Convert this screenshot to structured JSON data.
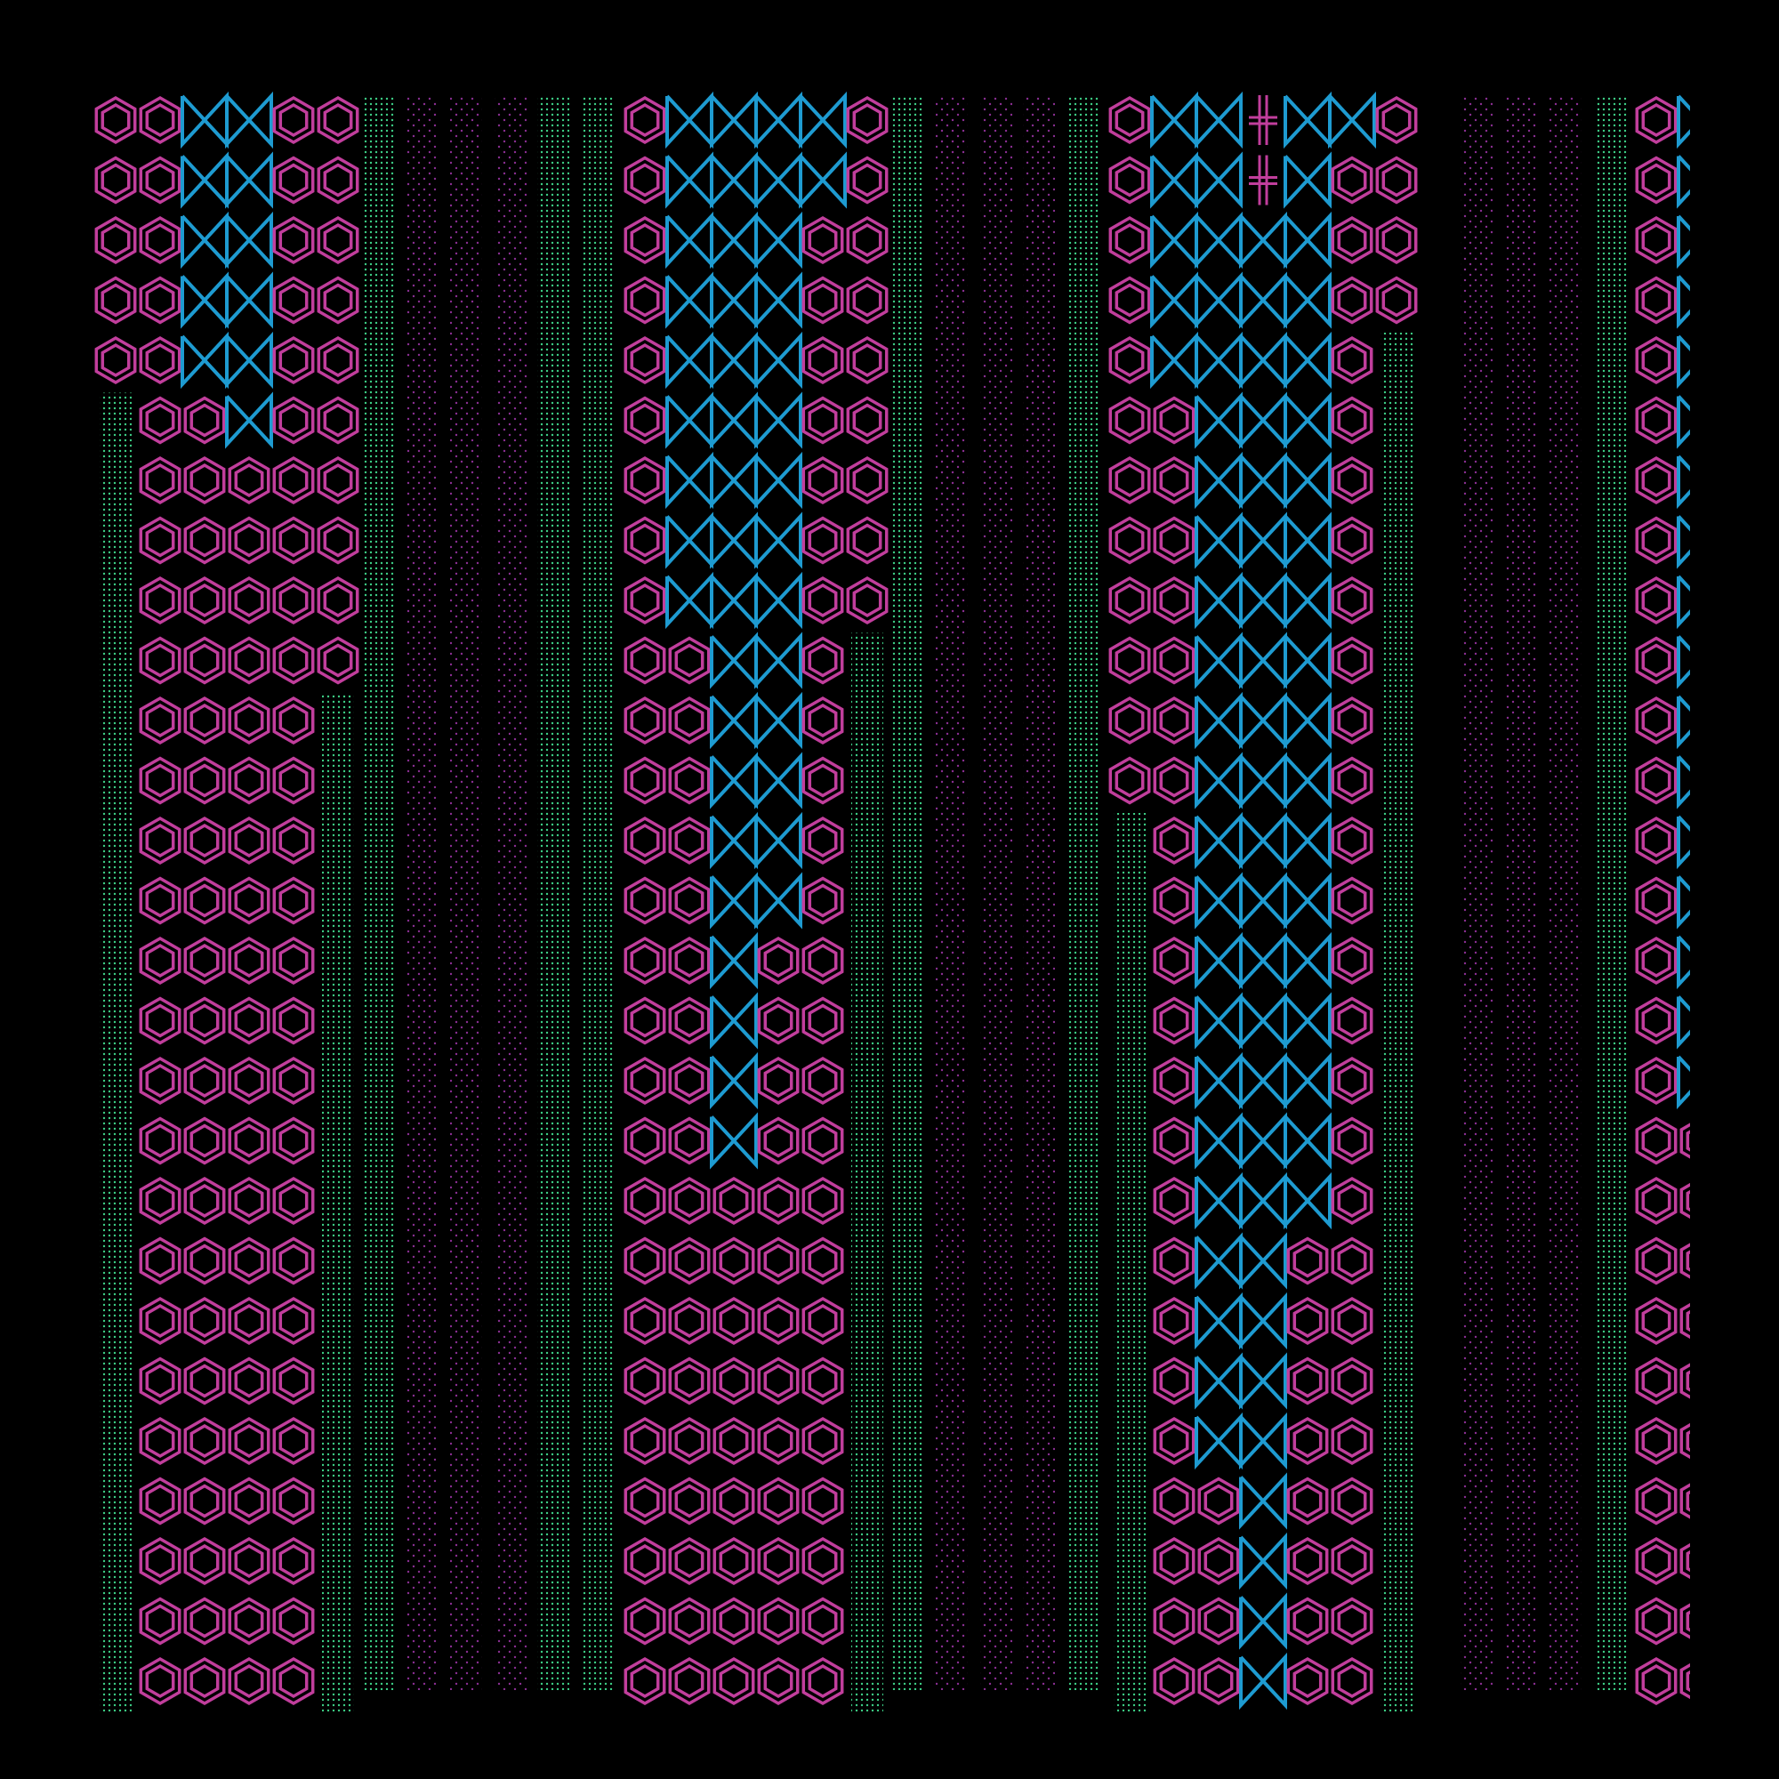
{
  "artwork": {
    "background": "#000000",
    "colors": {
      "magenta": "#c13e9c",
      "cyan": "#1e9bd1",
      "green": "#3dcf86",
      "purple": "#8a2e92"
    },
    "glyphs": {
      "hexagon": "hexagon-icon",
      "bowtie": "bowtie-icon",
      "cross": "double-cross-icon",
      "green_dots": "green-dot-fill",
      "purple_dots": "purple-dot-fill"
    },
    "columns": [
      {
        "id": "A",
        "rows": [
          [
            "H",
            "H",
            "B",
            "B",
            "H",
            "H"
          ],
          [
            "H",
            "H",
            "B",
            "B",
            "H",
            "H"
          ],
          [
            "H",
            "H",
            "B",
            "B",
            "H",
            "H"
          ],
          [
            "H",
            "H",
            "B",
            "B",
            "H",
            "H"
          ],
          [
            "H",
            "H",
            "B",
            "B",
            "H",
            "H"
          ],
          [
            "G",
            "H",
            "H",
            "B",
            "H",
            "H"
          ],
          [
            "G",
            "H",
            "H",
            "H",
            "H",
            "H"
          ],
          [
            "G",
            "H",
            "H",
            "H",
            "H",
            "H"
          ],
          [
            "G",
            "H",
            "H",
            "H",
            "H",
            "H"
          ],
          [
            "G",
            "H",
            "H",
            "H",
            "H",
            "H"
          ],
          [
            "G",
            "H",
            "H",
            "H",
            "H",
            "G"
          ],
          [
            "G",
            "H",
            "H",
            "H",
            "H",
            "G"
          ],
          [
            "G",
            "H",
            "H",
            "H",
            "H",
            "G"
          ],
          [
            "G",
            "H",
            "H",
            "H",
            "H",
            "G"
          ],
          [
            "G",
            "H",
            "H",
            "H",
            "H",
            "G"
          ],
          [
            "G",
            "H",
            "H",
            "H",
            "H",
            "G"
          ],
          [
            "G",
            "H",
            "H",
            "H",
            "H",
            "G"
          ],
          [
            "G",
            "H",
            "H",
            "H",
            "H",
            "G"
          ],
          [
            "G",
            "H",
            "H",
            "H",
            "H",
            "G"
          ],
          [
            "G",
            "H",
            "H",
            "H",
            "H",
            "G"
          ],
          [
            "G",
            "H",
            "H",
            "H",
            "H",
            "G"
          ],
          [
            "G",
            "H",
            "H",
            "H",
            "H",
            "G"
          ],
          [
            "G",
            "H",
            "H",
            "H",
            "H",
            "G"
          ],
          [
            "G",
            "H",
            "H",
            "H",
            "H",
            "G"
          ],
          [
            "G",
            "H",
            "H",
            "H",
            "H",
            "G"
          ],
          [
            "G",
            "H",
            "H",
            "H",
            "H",
            "G"
          ],
          [
            "G",
            "H",
            "H",
            "H",
            "H",
            "G"
          ]
        ]
      },
      {
        "id": "B",
        "rows": [
          [
            "H",
            "B",
            "B",
            "B",
            "B",
            "H"
          ],
          [
            "H",
            "B",
            "B",
            "B",
            "B",
            "H"
          ],
          [
            "H",
            "B",
            "B",
            "B",
            "H",
            "H"
          ],
          [
            "H",
            "B",
            "B",
            "B",
            "H",
            "H"
          ],
          [
            "H",
            "B",
            "B",
            "B",
            "H",
            "H"
          ],
          [
            "H",
            "B",
            "B",
            "B",
            "H",
            "H"
          ],
          [
            "H",
            "B",
            "B",
            "B",
            "H",
            "H"
          ],
          [
            "H",
            "B",
            "B",
            "B",
            "H",
            "H"
          ],
          [
            "H",
            "B",
            "B",
            "B",
            "H",
            "H"
          ],
          [
            "H",
            "H",
            "B",
            "B",
            "H",
            "G"
          ],
          [
            "H",
            "H",
            "B",
            "B",
            "H",
            "G"
          ],
          [
            "H",
            "H",
            "B",
            "B",
            "H",
            "G"
          ],
          [
            "H",
            "H",
            "B",
            "B",
            "H",
            "G"
          ],
          [
            "H",
            "H",
            "B",
            "B",
            "H",
            "G"
          ],
          [
            "H",
            "H",
            "B",
            "H",
            "H",
            "G"
          ],
          [
            "H",
            "H",
            "B",
            "H",
            "H",
            "G"
          ],
          [
            "H",
            "H",
            "B",
            "H",
            "H",
            "G"
          ],
          [
            "H",
            "H",
            "B",
            "H",
            "H",
            "G"
          ],
          [
            "H",
            "H",
            "H",
            "H",
            "H",
            "G"
          ],
          [
            "H",
            "H",
            "H",
            "H",
            "H",
            "G"
          ],
          [
            "H",
            "H",
            "H",
            "H",
            "H",
            "G"
          ],
          [
            "H",
            "H",
            "H",
            "H",
            "H",
            "G"
          ],
          [
            "H",
            "H",
            "H",
            "H",
            "H",
            "G"
          ],
          [
            "H",
            "H",
            "H",
            "H",
            "H",
            "G"
          ],
          [
            "H",
            "H",
            "H",
            "H",
            "H",
            "G"
          ],
          [
            "H",
            "H",
            "H",
            "H",
            "H",
            "G"
          ],
          [
            "H",
            "H",
            "H",
            "H",
            "H",
            "G"
          ]
        ]
      },
      {
        "id": "C",
        "rows": [
          [
            "H",
            "B",
            "B",
            "X",
            "B",
            "B",
            "H"
          ],
          [
            "H",
            "B",
            "B",
            "X",
            "B",
            "H",
            "H"
          ],
          [
            "H",
            "B",
            "B",
            "B",
            "B",
            "H",
            "H"
          ],
          [
            "H",
            "B",
            "B",
            "B",
            "B",
            "H",
            "H"
          ],
          [
            "H",
            "B",
            "B",
            "B",
            "B",
            "H",
            "G"
          ],
          [
            "H",
            "H",
            "B",
            "B",
            "B",
            "H",
            "G"
          ],
          [
            "H",
            "H",
            "B",
            "B",
            "B",
            "H",
            "G"
          ],
          [
            "H",
            "H",
            "B",
            "B",
            "B",
            "H",
            "G"
          ],
          [
            "H",
            "H",
            "B",
            "B",
            "B",
            "H",
            "G"
          ],
          [
            "H",
            "H",
            "B",
            "B",
            "B",
            "H",
            "G"
          ],
          [
            "H",
            "H",
            "B",
            "B",
            "B",
            "H",
            "G"
          ],
          [
            "H",
            "H",
            "B",
            "B",
            "B",
            "H",
            "G"
          ],
          [
            "G",
            "H",
            "B",
            "B",
            "B",
            "H",
            "G"
          ],
          [
            "G",
            "H",
            "B",
            "B",
            "B",
            "H",
            "G"
          ],
          [
            "G",
            "H",
            "B",
            "B",
            "B",
            "H",
            "G"
          ],
          [
            "G",
            "H",
            "B",
            "B",
            "B",
            "H",
            "G"
          ],
          [
            "G",
            "H",
            "B",
            "B",
            "B",
            "H",
            "G"
          ],
          [
            "G",
            "H",
            "B",
            "B",
            "B",
            "H",
            "G"
          ],
          [
            "G",
            "H",
            "B",
            "B",
            "B",
            "H",
            "G"
          ],
          [
            "G",
            "H",
            "B",
            "B",
            "H",
            "H",
            "G"
          ],
          [
            "G",
            "H",
            "B",
            "B",
            "H",
            "H",
            "G"
          ],
          [
            "G",
            "H",
            "B",
            "B",
            "H",
            "H",
            "G"
          ],
          [
            "G",
            "H",
            "B",
            "B",
            "H",
            "H",
            "G"
          ],
          [
            "G",
            "H",
            "H",
            "B",
            "H",
            "H",
            "G"
          ],
          [
            "G",
            "H",
            "H",
            "B",
            "H",
            "H",
            "G"
          ],
          [
            "G",
            "H",
            "H",
            "B",
            "H",
            "H",
            "G"
          ],
          [
            "G",
            "H",
            "H",
            "B",
            "H",
            "H",
            "G"
          ]
        ]
      },
      {
        "id": "D",
        "rows_with_bowtie": 17,
        "rows": 27
      }
    ]
  }
}
